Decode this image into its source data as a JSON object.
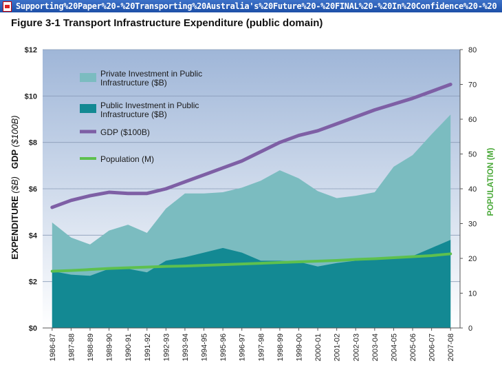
{
  "window": {
    "title": "Supporting%20Paper%20-%20Transporting%20Australia's%20Future%20-%20FINAL%20-%20In%20Confidence%20-%20"
  },
  "figure_title": "Figure 3-1 Transport Infrastructure Expenditure (public domain)",
  "colors": {
    "plot_bg_top": "#9fb6d8",
    "plot_bg_bottom": "#ffffff",
    "private": "#7bbcc0",
    "public": "#138993",
    "gdp": "#7e5fa5",
    "population": "#5ec04e",
    "population_axis_label": "#4daa3c"
  },
  "chart_data": {
    "type": "area",
    "categories": [
      "1986-87",
      "1987-88",
      "1988-89",
      "1989-90",
      "1990-91",
      "1991-92",
      "1992-93",
      "1993-94",
      "1994-95",
      "1995-96",
      "1996-97",
      "1997-98",
      "1998-99",
      "1999-00",
      "2000-01",
      "2001-02",
      "2002-03",
      "2003-04",
      "2004-05",
      "2005-06",
      "2006-07",
      "2007-08"
    ],
    "series": [
      {
        "name": "Private Investment in Public Infrastructure ($B)",
        "axis": "left",
        "style": "stacked-area",
        "values": [
          2.1,
          1.6,
          1.35,
          1.65,
          1.9,
          1.7,
          2.25,
          2.75,
          2.55,
          2.4,
          2.8,
          3.45,
          3.9,
          3.6,
          3.25,
          2.8,
          2.8,
          2.9,
          3.95,
          4.35,
          4.9,
          5.4
        ]
      },
      {
        "name": "Public Investment in Public Infrastructure ($B)",
        "axis": "left",
        "style": "area",
        "values": [
          2.45,
          2.3,
          2.25,
          2.55,
          2.55,
          2.4,
          2.9,
          3.05,
          3.25,
          3.45,
          3.25,
          2.9,
          2.9,
          2.85,
          2.65,
          2.8,
          2.9,
          2.95,
          3.0,
          3.1,
          3.45,
          3.8
        ]
      },
      {
        "name": "GDP ($100B)",
        "axis": "left",
        "style": "line",
        "values": [
          5.2,
          5.5,
          5.7,
          5.85,
          5.8,
          5.8,
          6.0,
          6.3,
          6.6,
          6.9,
          7.2,
          7.6,
          8.0,
          8.3,
          8.5,
          8.8,
          9.1,
          9.4,
          9.65,
          9.9,
          10.2,
          10.5
        ]
      },
      {
        "name": "Population (M)",
        "axis": "right",
        "style": "line",
        "values": [
          16.3,
          16.5,
          16.8,
          17.1,
          17.3,
          17.5,
          17.7,
          17.8,
          18.0,
          18.2,
          18.4,
          18.6,
          18.8,
          19.0,
          19.2,
          19.4,
          19.7,
          19.9,
          20.2,
          20.5,
          20.8,
          21.3
        ]
      }
    ],
    "ylabel_left": "EXPENDITURE ($B)   GDP ($100B)",
    "ylabel_left_parts": {
      "expenditure": "EXPENDITURE",
      "exp_unit": "($B)",
      "gdp": "GDP",
      "gdp_unit": "($100B)"
    },
    "ylabel_right": "POPULATION (M)",
    "ylim_left": [
      0,
      12
    ],
    "ylim_right": [
      0,
      80
    ],
    "yticks_left": [
      "$0",
      "$2",
      "$4",
      "$6",
      "$8",
      "$10",
      "$12"
    ],
    "yticks_right": [
      "0",
      "10",
      "20",
      "30",
      "40",
      "50",
      "60",
      "70",
      "80"
    ],
    "legend_position": "top-left inside plot",
    "grid": "horizontal"
  }
}
